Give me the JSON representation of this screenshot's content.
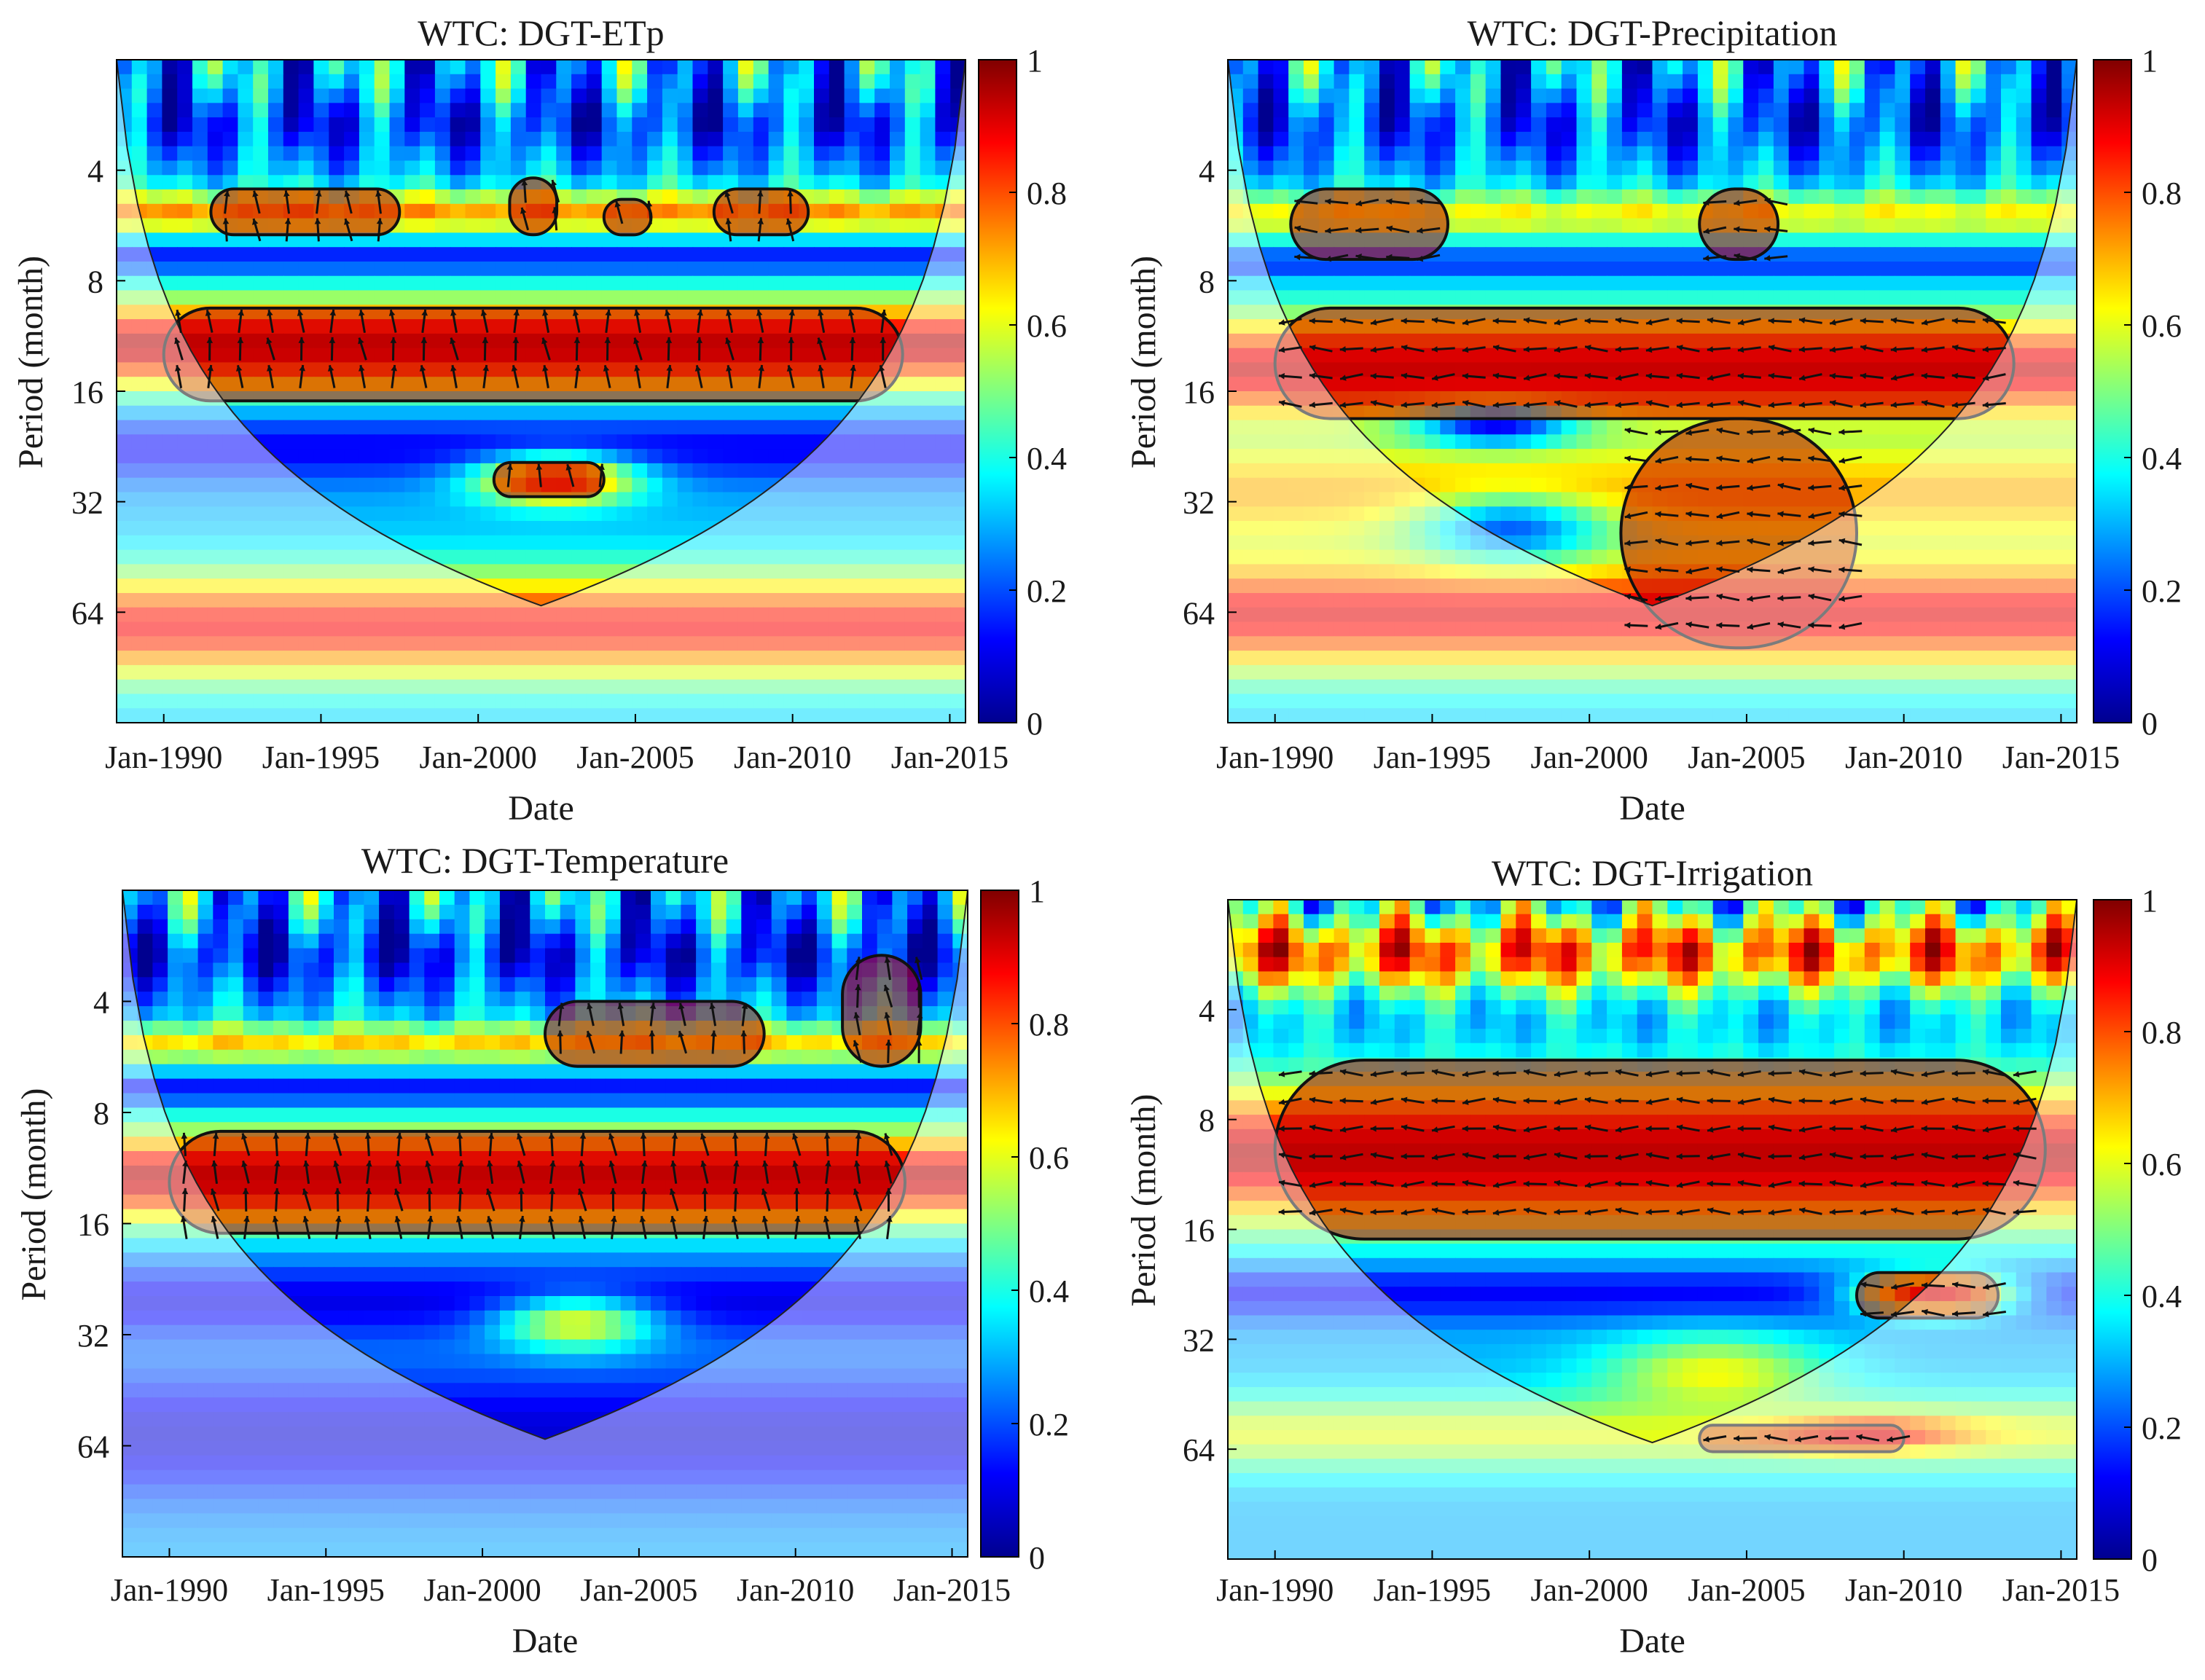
{
  "figure": {
    "type": "wavelet-coherence-panels"
  },
  "colors": {
    "colormap": [
      "#00008f",
      "#0000ff",
      "#0080ff",
      "#00ffff",
      "#80ff80",
      "#ffff00",
      "#ff8000",
      "#ff0000",
      "#800000"
    ],
    "contour": "#111111",
    "arrow_inside": "#111111",
    "arrow_outside": "#8a8a8a",
    "coi_overlay": "#ffffff",
    "axis": "#000000"
  },
  "chart_data": [
    {
      "type": "heatmap",
      "title": "WTC: DGT-ETp",
      "xlabel": "Date",
      "ylabel": "Period (month)",
      "xticks": [
        "Jan-1990",
        "Jan-1995",
        "Jan-2000",
        "Jan-2005",
        "Jan-2010",
        "Jan-2015"
      ],
      "xrange": [
        1988.5,
        2015.5
      ],
      "yscale": "log2",
      "yticks": [
        4,
        8,
        16,
        32,
        64
      ],
      "yrange": [
        2,
        128
      ],
      "colorbar": {
        "ticks": [
          "0",
          "0.2",
          "0.4",
          "0.6",
          "0.8",
          "1"
        ],
        "range": [
          0,
          1
        ]
      },
      "bands": [
        {
          "center": 3,
          "width": 0.28,
          "value": 0.18
        },
        {
          "center": 5.2,
          "width": 0.2,
          "value": 0.72
        },
        {
          "center": 7,
          "width": 0.13,
          "value": 0.12
        },
        {
          "center": 12,
          "width": 0.42,
          "value": 0.95
        },
        {
          "center": 23,
          "width": 0.3,
          "value": 0.12
        },
        {
          "center": 70,
          "width": 0.5,
          "value": 0.88
        }
      ],
      "blobs": [
        {
          "t": 2002.5,
          "p": 28,
          "sx": 2.5,
          "sy": 0.22,
          "value": 0.85
        }
      ],
      "significant_regions": [
        {
          "t0": 1990.0,
          "t1": 2013.5,
          "p0": 9.5,
          "p1": 17
        },
        {
          "t0": 1991.5,
          "t1": 1997.5,
          "p0": 4.5,
          "p1": 6
        },
        {
          "t0": 2001.0,
          "t1": 2002.5,
          "p0": 4.2,
          "p1": 6
        },
        {
          "t0": 2004.0,
          "t1": 2005.5,
          "p0": 4.8,
          "p1": 6
        },
        {
          "t0": 2007.5,
          "t1": 2010.5,
          "p0": 4.5,
          "p1": 6
        },
        {
          "t0": 2000.5,
          "t1": 2004.0,
          "p0": 25,
          "p1": 31
        }
      ],
      "phase_deg": 95
    },
    {
      "type": "heatmap",
      "title": "WTC: DGT-Precipitation",
      "xlabel": "Date",
      "ylabel": "Period (month)",
      "xticks": [
        "Jan-1990",
        "Jan-1995",
        "Jan-2000",
        "Jan-2005",
        "Jan-2010",
        "Jan-2015"
      ],
      "xrange": [
        1988.5,
        2015.5
      ],
      "yscale": "log2",
      "yticks": [
        4,
        8,
        16,
        32,
        64
      ],
      "yrange": [
        2,
        128
      ],
      "colorbar": {
        "ticks": [
          "0",
          "0.2",
          "0.4",
          "0.6",
          "0.8",
          "1"
        ],
        "range": [
          0,
          1
        ]
      },
      "bands": [
        {
          "center": 3,
          "width": 0.3,
          "value": 0.2
        },
        {
          "center": 5.3,
          "width": 0.22,
          "value": 0.62
        },
        {
          "center": 7.2,
          "width": 0.12,
          "value": 0.15
        },
        {
          "center": 14,
          "width": 0.5,
          "value": 0.93
        },
        {
          "center": 30,
          "width": 0.55,
          "value": 0.7
        },
        {
          "center": 65,
          "width": 0.55,
          "value": 0.9
        }
      ],
      "blobs": [
        {
          "t": 1997.0,
          "p": 20,
          "sx": 2.5,
          "sy": 0.18,
          "value": 0.12
        },
        {
          "t": 1997.5,
          "p": 38,
          "sx": 3.0,
          "sy": 0.3,
          "value": 0.22
        }
      ],
      "significant_regions": [
        {
          "t0": 1990.0,
          "t1": 2013.5,
          "p0": 9.5,
          "p1": 19
        },
        {
          "t0": 2001.0,
          "t1": 2008.5,
          "p0": 19,
          "p1": 80
        },
        {
          "t0": 1990.5,
          "t1": 1995.5,
          "p0": 4.5,
          "p1": 7
        },
        {
          "t0": 2003.5,
          "t1": 2006.0,
          "p0": 4.5,
          "p1": 7
        }
      ],
      "phase_deg": 180
    },
    {
      "type": "heatmap",
      "title": "WTC: DGT-Temperature",
      "xlabel": "Date",
      "ylabel": "Period (month)",
      "xticks": [
        "Jan-1990",
        "Jan-1995",
        "Jan-2000",
        "Jan-2005",
        "Jan-2010",
        "Jan-2015"
      ],
      "xrange": [
        1988.5,
        2015.5
      ],
      "yscale": "log2",
      "yticks": [
        4,
        8,
        16,
        32,
        64
      ],
      "yrange": [
        2,
        128
      ],
      "colorbar": {
        "ticks": [
          "0",
          "0.2",
          "0.4",
          "0.6",
          "0.8",
          "1"
        ],
        "range": [
          0,
          1
        ]
      },
      "bands": [
        {
          "center": 3,
          "width": 0.3,
          "value": 0.15
        },
        {
          "center": 5.2,
          "width": 0.18,
          "value": 0.66
        },
        {
          "center": 7,
          "width": 0.12,
          "value": 0.1
        },
        {
          "center": 12,
          "width": 0.42,
          "value": 0.95
        },
        {
          "center": 26,
          "width": 0.35,
          "value": 0.1
        },
        {
          "center": 60,
          "width": 0.6,
          "value": 0.08
        }
      ],
      "blobs": [
        {
          "t": 2003.0,
          "p": 30,
          "sx": 2.5,
          "sy": 0.25,
          "value": 0.6
        }
      ],
      "significant_regions": [
        {
          "t0": 1990.0,
          "t1": 2013.5,
          "p0": 9.0,
          "p1": 17
        },
        {
          "t0": 2002.0,
          "t1": 2009.0,
          "p0": 4.0,
          "p1": 6
        },
        {
          "t0": 2011.5,
          "t1": 2014.0,
          "p0": 3.0,
          "p1": 6
        }
      ],
      "phase_deg": 95
    },
    {
      "type": "heatmap",
      "title": "WTC: DGT-Irrigation",
      "xlabel": "Date",
      "ylabel": "Period (month)",
      "xticks": [
        "Jan-1990",
        "Jan-1995",
        "Jan-2000",
        "Jan-2005",
        "Jan-2010",
        "Jan-2015"
      ],
      "xrange": [
        1988.5,
        2015.5
      ],
      "yscale": "log2",
      "yticks": [
        4,
        8,
        16,
        32,
        64
      ],
      "yrange": [
        2,
        128
      ],
      "colorbar": {
        "ticks": [
          "0",
          "0.2",
          "0.4",
          "0.6",
          "0.8",
          "1"
        ],
        "range": [
          0,
          1
        ]
      },
      "bands": [
        {
          "center": 2.8,
          "width": 0.35,
          "value": 0.78
        },
        {
          "center": 10,
          "width": 0.65,
          "value": 0.95
        },
        {
          "center": 24,
          "width": 0.25,
          "value": 0.12
        },
        {
          "center": 58,
          "width": 0.35,
          "value": 0.6
        }
      ],
      "blobs": [
        {
          "t": 2011.0,
          "p": 24,
          "sx": 2.5,
          "sy": 0.2,
          "value": 0.9
        },
        {
          "t": 2009.0,
          "p": 58,
          "sx": 3.0,
          "sy": 0.15,
          "value": 0.9
        },
        {
          "t": 2004.0,
          "p": 40,
          "sx": 3.5,
          "sy": 0.35,
          "value": 0.62
        }
      ],
      "significant_regions": [
        {
          "t0": 1990.0,
          "t1": 2014.5,
          "p0": 5.5,
          "p1": 17
        },
        {
          "t0": 2008.5,
          "t1": 2013.0,
          "p0": 21,
          "p1": 28
        },
        {
          "t0": 2003.5,
          "t1": 2010.0,
          "p0": 55,
          "p1": 65
        }
      ],
      "phase_deg": 180
    }
  ]
}
